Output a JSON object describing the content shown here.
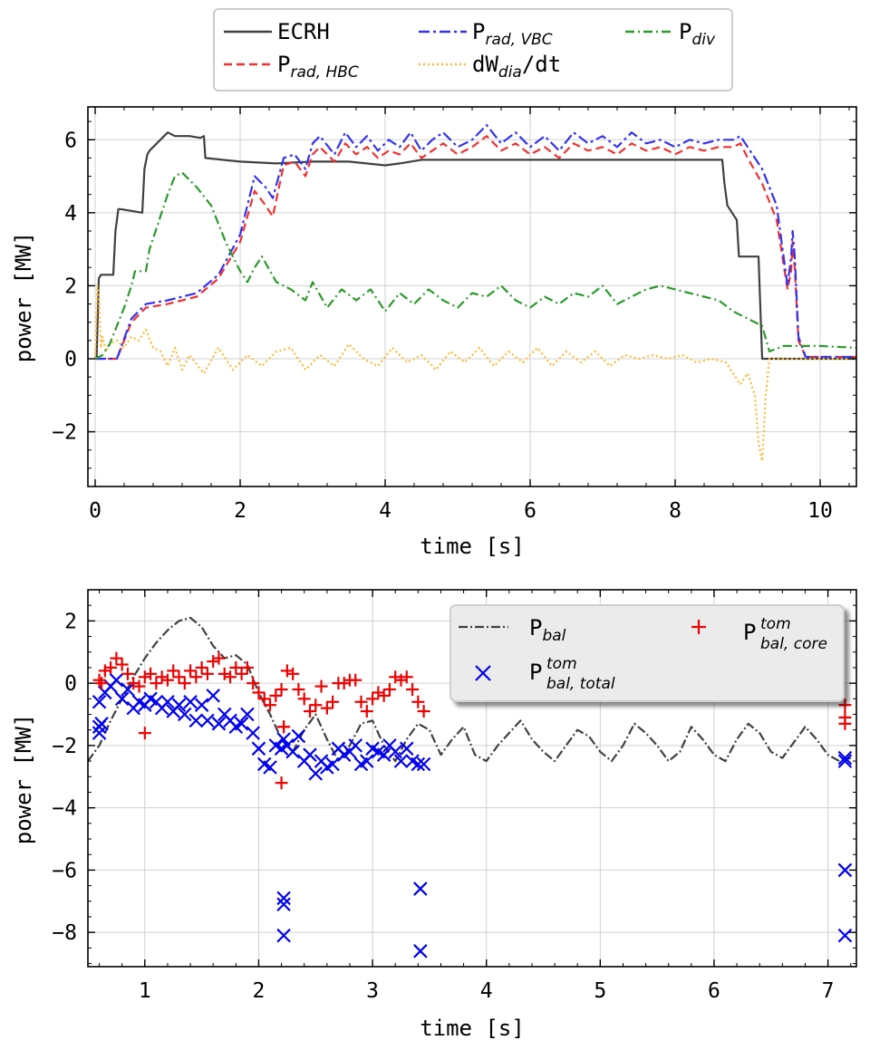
{
  "chart_data": [
    {
      "type": "line",
      "title": "",
      "xlabel": "time [s]",
      "ylabel": "power [MW]",
      "xlim": [
        -0.1,
        10.5
      ],
      "ylim": [
        -3.5,
        6.9
      ],
      "grid": true,
      "legend_position": "above",
      "xticks": [
        0,
        2,
        4,
        6,
        8,
        10
      ],
      "yticks": [
        -2,
        0,
        2,
        4,
        6
      ],
      "series": [
        {
          "name": "ECRH",
          "name_sub": "",
          "color": "#404040",
          "dash": "solid",
          "x": [
            0,
            0.02,
            0.05,
            0.08,
            0.25,
            0.28,
            0.32,
            0.35,
            0.65,
            0.68,
            0.72,
            0.75,
            0.9,
            1.0,
            1.1,
            1.2,
            1.3,
            1.45,
            1.5,
            1.52,
            2.0,
            2.5,
            3.0,
            3.5,
            4.0,
            4.2,
            4.5,
            5.0,
            6.0,
            7.0,
            8.0,
            8.65,
            8.68,
            8.72,
            8.85,
            8.88,
            9.15,
            9.2,
            10.5
          ],
          "y": [
            0,
            0,
            2.2,
            2.3,
            2.3,
            3.5,
            4.1,
            4.1,
            4.0,
            5.2,
            5.6,
            5.7,
            6.0,
            6.2,
            6.1,
            6.1,
            6.1,
            6.05,
            6.1,
            5.5,
            5.4,
            5.35,
            5.4,
            5.4,
            5.3,
            5.35,
            5.45,
            5.45,
            5.45,
            5.45,
            5.45,
            5.45,
            4.8,
            4.2,
            3.8,
            2.8,
            2.8,
            0,
            0
          ]
        },
        {
          "name": "P",
          "name_sub": "rad, HBC",
          "color": "#f03030",
          "dash": "9,5",
          "x": [
            0,
            0.3,
            0.5,
            0.7,
            1.0,
            1.4,
            1.7,
            2.0,
            2.2,
            2.35,
            2.45,
            2.6,
            2.75,
            2.9,
            3.0,
            3.1,
            3.3,
            3.45,
            3.6,
            3.75,
            3.9,
            4.05,
            4.2,
            4.35,
            4.5,
            4.65,
            4.8,
            5.0,
            5.2,
            5.4,
            5.6,
            5.8,
            6.0,
            6.2,
            6.4,
            6.6,
            6.8,
            7.0,
            7.2,
            7.4,
            7.6,
            7.8,
            8.0,
            8.2,
            8.4,
            8.6,
            8.8,
            8.9,
            9.0,
            9.2,
            9.4,
            9.55,
            9.6,
            9.62,
            9.65,
            9.7,
            9.8,
            10.5
          ],
          "y": [
            0,
            0,
            1.0,
            1.4,
            1.5,
            1.7,
            2.2,
            3.2,
            4.6,
            4.2,
            3.9,
            5.3,
            5.4,
            5.0,
            5.6,
            5.8,
            5.4,
            5.9,
            5.6,
            5.8,
            5.5,
            5.7,
            5.6,
            5.9,
            5.5,
            5.7,
            5.9,
            5.6,
            5.8,
            6.1,
            5.7,
            5.9,
            5.6,
            5.8,
            5.5,
            5.9,
            5.7,
            5.8,
            5.6,
            5.9,
            5.7,
            5.8,
            5.6,
            5.8,
            5.7,
            5.8,
            5.8,
            5.9,
            5.5,
            4.8,
            3.8,
            1.9,
            2.4,
            3.2,
            2.5,
            0.5,
            0.05,
            0.05
          ]
        },
        {
          "name": "P",
          "name_sub": "rad, VBC",
          "color": "#3333ee",
          "dash": "12,4,3,4",
          "x": [
            0,
            0.3,
            0.5,
            0.7,
            1.0,
            1.4,
            1.7,
            2.0,
            2.2,
            2.35,
            2.45,
            2.6,
            2.75,
            2.9,
            3.0,
            3.1,
            3.3,
            3.45,
            3.6,
            3.75,
            3.9,
            4.05,
            4.2,
            4.35,
            4.5,
            4.65,
            4.8,
            5.0,
            5.2,
            5.4,
            5.6,
            5.8,
            6.0,
            6.2,
            6.4,
            6.6,
            6.8,
            7.0,
            7.2,
            7.4,
            7.6,
            7.8,
            8.0,
            8.2,
            8.4,
            8.6,
            8.8,
            8.9,
            9.0,
            9.2,
            9.4,
            9.55,
            9.6,
            9.62,
            9.65,
            9.7,
            9.8,
            10.5
          ],
          "y": [
            0,
            0,
            1.1,
            1.5,
            1.6,
            1.8,
            2.3,
            3.4,
            5.0,
            4.7,
            4.4,
            5.5,
            5.6,
            5.2,
            5.9,
            6.1,
            5.6,
            6.2,
            5.8,
            6.1,
            5.7,
            6.0,
            5.8,
            6.2,
            5.7,
            6.0,
            6.2,
            5.8,
            6.0,
            6.4,
            5.9,
            6.2,
            5.8,
            6.1,
            5.7,
            6.2,
            5.9,
            6.1,
            5.8,
            6.2,
            5.9,
            6.0,
            5.8,
            6.0,
            5.9,
            6.0,
            6.0,
            6.1,
            5.8,
            5.2,
            4.2,
            2.0,
            2.8,
            3.5,
            2.8,
            0.6,
            0.05,
            0.05
          ]
        },
        {
          "name": "dW",
          "name_sub": "dia",
          "name_suffix": "/dt",
          "color": "#ffb833",
          "dash": "2,3",
          "x": [
            0,
            0.03,
            0.05,
            0.08,
            0.1,
            0.15,
            0.2,
            0.3,
            0.4,
            0.5,
            0.6,
            0.7,
            0.8,
            0.9,
            1.0,
            1.1,
            1.2,
            1.3,
            1.5,
            1.7,
            1.9,
            2.1,
            2.3,
            2.5,
            2.7,
            2.9,
            3.1,
            3.3,
            3.5,
            3.7,
            3.9,
            4.1,
            4.3,
            4.5,
            4.7,
            4.9,
            5.1,
            5.3,
            5.5,
            5.7,
            5.9,
            6.1,
            6.3,
            6.5,
            6.7,
            6.9,
            7.1,
            7.3,
            7.5,
            7.7,
            7.9,
            8.1,
            8.3,
            8.5,
            8.7,
            8.9,
            9.0,
            9.1,
            9.15,
            9.2,
            9.25,
            9.3,
            10.5
          ],
          "y": [
            0,
            2.0,
            1.8,
            0.3,
            0.6,
            0.2,
            0.4,
            0.5,
            0.3,
            0.6,
            0.5,
            0.8,
            0.3,
            0.2,
            -0.2,
            0.3,
            -0.3,
            0.1,
            -0.4,
            0.3,
            -0.3,
            0.1,
            -0.2,
            0.2,
            0.3,
            -0.3,
            0.1,
            -0.2,
            0.4,
            0.0,
            -0.2,
            0.3,
            -0.1,
            0.1,
            -0.3,
            0.2,
            -0.1,
            0.3,
            -0.2,
            0.2,
            -0.1,
            0.3,
            -0.2,
            0.2,
            -0.1,
            0.2,
            -0.2,
            0.1,
            0.0,
            0.1,
            0.0,
            0.1,
            -0.1,
            0.0,
            -0.1,
            -0.7,
            -0.4,
            -1.0,
            -2.3,
            -2.8,
            -1.0,
            0.0,
            0.0
          ]
        },
        {
          "name": "P",
          "name_sub": "div",
          "color": "#2a9a2a",
          "dash": "10,4,2,4",
          "x": [
            0,
            0.1,
            0.2,
            0.3,
            0.4,
            0.5,
            0.55,
            0.6,
            0.7,
            0.75,
            0.85,
            1.0,
            1.1,
            1.2,
            1.3,
            1.4,
            1.6,
            1.8,
            2.0,
            2.1,
            2.2,
            2.3,
            2.5,
            2.7,
            2.9,
            3.0,
            3.2,
            3.4,
            3.6,
            3.8,
            4.0,
            4.2,
            4.4,
            4.6,
            4.8,
            5.0,
            5.2,
            5.4,
            5.6,
            5.8,
            6.0,
            6.2,
            6.4,
            6.6,
            6.8,
            7.0,
            7.2,
            7.4,
            7.6,
            7.8,
            8.0,
            8.2,
            8.4,
            8.6,
            8.8,
            9.0,
            9.2,
            9.3,
            9.5,
            10.0,
            10.5
          ],
          "y": [
            0,
            0.1,
            0.4,
            0.9,
            1.4,
            2.0,
            2.4,
            2.4,
            2.4,
            3.0,
            3.6,
            4.5,
            5.0,
            5.1,
            4.9,
            4.7,
            4.2,
            3.2,
            2.4,
            2.1,
            2.5,
            2.8,
            2.1,
            1.9,
            1.6,
            2.1,
            1.4,
            1.9,
            1.6,
            1.9,
            1.3,
            1.8,
            1.5,
            1.9,
            1.6,
            1.4,
            1.8,
            1.7,
            2.0,
            1.6,
            1.4,
            1.7,
            1.5,
            1.8,
            1.7,
            2.0,
            1.5,
            1.7,
            1.9,
            2.0,
            1.9,
            1.8,
            1.7,
            1.6,
            1.3,
            1.1,
            0.9,
            0.2,
            0.35,
            0.35,
            0.3
          ]
        }
      ]
    },
    {
      "type": "scatter",
      "title": "",
      "xlabel": "time [s]",
      "ylabel": "power [MW]",
      "xlim": [
        0.5,
        7.25
      ],
      "ylim": [
        -9.1,
        3.0
      ],
      "grid": true,
      "legend_position": "top-right",
      "xticks": [
        1,
        2,
        3,
        4,
        5,
        6,
        7
      ],
      "yticks": [
        -8,
        -6,
        -4,
        -2,
        0,
        2
      ],
      "series": [
        {
          "name": "P",
          "name_sub": "bal",
          "name_sup": "",
          "kind": "line",
          "color": "#404040",
          "dash": "10,3,2,3",
          "x": [
            0.5,
            0.6,
            0.7,
            0.8,
            0.9,
            1.0,
            1.1,
            1.2,
            1.3,
            1.4,
            1.5,
            1.6,
            1.7,
            1.8,
            1.9,
            2.0,
            2.1,
            2.2,
            2.3,
            2.4,
            2.5,
            2.6,
            2.7,
            2.8,
            2.9,
            3.0,
            3.1,
            3.2,
            3.3,
            3.4,
            3.5,
            3.6,
            3.7,
            3.8,
            3.9,
            4.0,
            4.1,
            4.2,
            4.3,
            4.4,
            4.5,
            4.6,
            4.7,
            4.8,
            4.9,
            5.0,
            5.1,
            5.2,
            5.3,
            5.4,
            5.5,
            5.6,
            5.7,
            5.8,
            5.9,
            6.0,
            6.1,
            6.2,
            6.3,
            6.4,
            6.5,
            6.6,
            6.7,
            6.8,
            6.9,
            7.0,
            7.1,
            7.2
          ],
          "y": [
            -2.5,
            -2.0,
            -1.2,
            -0.5,
            0.2,
            0.8,
            1.3,
            1.7,
            2.0,
            2.1,
            1.8,
            1.2,
            0.8,
            0.9,
            0.6,
            -0.3,
            -1.0,
            -1.8,
            -2.2,
            -1.5,
            -1.0,
            -1.8,
            -2.5,
            -2.0,
            -1.3,
            -1.2,
            -2.0,
            -2.5,
            -1.8,
            -1.3,
            -1.5,
            -2.3,
            -1.8,
            -1.4,
            -2.3,
            -2.5,
            -2.0,
            -1.6,
            -1.2,
            -1.8,
            -2.2,
            -2.5,
            -2.0,
            -1.5,
            -1.7,
            -2.2,
            -2.5,
            -2.0,
            -1.3,
            -1.6,
            -2.0,
            -2.5,
            -2.2,
            -1.4,
            -1.8,
            -2.3,
            -2.5,
            -1.8,
            -1.3,
            -1.6,
            -2.2,
            -2.4,
            -1.9,
            -1.4,
            -1.8,
            -2.3,
            -2.5,
            -2.4
          ]
        },
        {
          "name": "P",
          "name_sub": "bal, total",
          "name_sup": "tom",
          "kind": "x-marker",
          "color": "#0000ee",
          "x": [
            0.6,
            0.62,
            0.65,
            0.7,
            0.75,
            0.8,
            0.85,
            0.9,
            0.95,
            1.0,
            1.05,
            1.1,
            1.15,
            1.2,
            1.25,
            1.3,
            1.35,
            1.4,
            1.45,
            1.5,
            1.55,
            1.6,
            1.65,
            1.7,
            1.75,
            1.8,
            1.85,
            1.9,
            1.95,
            2.0,
            2.05,
            2.1,
            2.15,
            2.2,
            2.22,
            2.25,
            2.3,
            2.35,
            2.4,
            2.45,
            2.5,
            2.55,
            2.6,
            2.65,
            2.7,
            2.75,
            2.8,
            2.85,
            2.9,
            2.95,
            3.0,
            3.05,
            3.1,
            3.15,
            3.2,
            3.25,
            3.3,
            3.35,
            3.4,
            3.45,
            0.6,
            0.6,
            2.22,
            2.22,
            2.22,
            3.42,
            3.42,
            7.15,
            7.15,
            7.15,
            7.15
          ],
          "y": [
            -0.6,
            -1.3,
            -0.3,
            -0.1,
            0.1,
            -0.5,
            -0.2,
            -0.8,
            -0.6,
            -0.7,
            -0.5,
            -0.6,
            -0.8,
            -0.6,
            -0.9,
            -0.7,
            -1.0,
            -0.6,
            -1.2,
            -0.7,
            -1.2,
            -0.4,
            -1.3,
            -1.0,
            -1.2,
            -1.4,
            -1.3,
            -1.0,
            -1.6,
            -2.1,
            -2.6,
            -2.7,
            -2.0,
            -2.1,
            -1.8,
            -2.0,
            -2.2,
            -1.7,
            -2.5,
            -2.3,
            -2.9,
            -2.5,
            -2.7,
            -2.6,
            -2.1,
            -2.3,
            -2.2,
            -2.0,
            -2.6,
            -2.5,
            -2.1,
            -2.2,
            -2.3,
            -2.0,
            -2.2,
            -2.5,
            -2.1,
            -2.5,
            -2.6,
            -2.6,
            -1.4,
            -1.6,
            -6.9,
            -7.1,
            -8.1,
            -6.6,
            -8.6,
            -2.4,
            -2.5,
            -6.0,
            -8.1
          ]
        },
        {
          "name": "P",
          "name_sub": "bal, core",
          "name_sup": "tom",
          "kind": "plus-marker",
          "color": "#ee0000",
          "x": [
            0.6,
            0.62,
            0.65,
            0.7,
            0.75,
            0.8,
            0.85,
            0.9,
            0.95,
            1.0,
            1.05,
            1.1,
            1.15,
            1.2,
            1.25,
            1.3,
            1.35,
            1.4,
            1.45,
            1.5,
            1.55,
            1.6,
            1.65,
            1.7,
            1.75,
            1.8,
            1.85,
            1.9,
            1.95,
            2.0,
            2.05,
            2.1,
            2.15,
            2.2,
            2.22,
            2.25,
            2.3,
            2.35,
            2.4,
            2.45,
            2.5,
            2.55,
            2.6,
            2.65,
            2.7,
            2.75,
            2.8,
            2.85,
            2.9,
            2.95,
            3.0,
            3.05,
            3.1,
            3.15,
            3.2,
            3.25,
            3.3,
            3.35,
            3.4,
            3.45,
            1.0,
            2.2,
            2.22,
            7.15,
            7.15,
            7.15
          ],
          "y": [
            0.1,
            0.0,
            0.4,
            0.5,
            0.8,
            0.6,
            0.3,
            0.0,
            -0.1,
            0.2,
            0.3,
            0.0,
            0.2,
            0.1,
            0.4,
            0.2,
            0.0,
            0.4,
            0.2,
            0.5,
            0.3,
            0.7,
            0.8,
            0.3,
            0.2,
            0.5,
            0.3,
            0.5,
            0.0,
            -0.3,
            -0.5,
            -0.7,
            -0.4,
            -0.2,
            -1.4,
            0.4,
            0.3,
            -0.2,
            -0.5,
            -0.9,
            -0.7,
            -0.1,
            -0.8,
            -0.6,
            0.0,
            0.0,
            0.1,
            0.1,
            -0.6,
            -0.9,
            -0.5,
            -0.3,
            -0.4,
            -0.2,
            0.2,
            0.1,
            0.2,
            -0.2,
            -0.6,
            -0.9,
            -1.6,
            -3.2,
            -1.4,
            -0.7,
            -1.1,
            -1.3
          ]
        }
      ]
    }
  ]
}
